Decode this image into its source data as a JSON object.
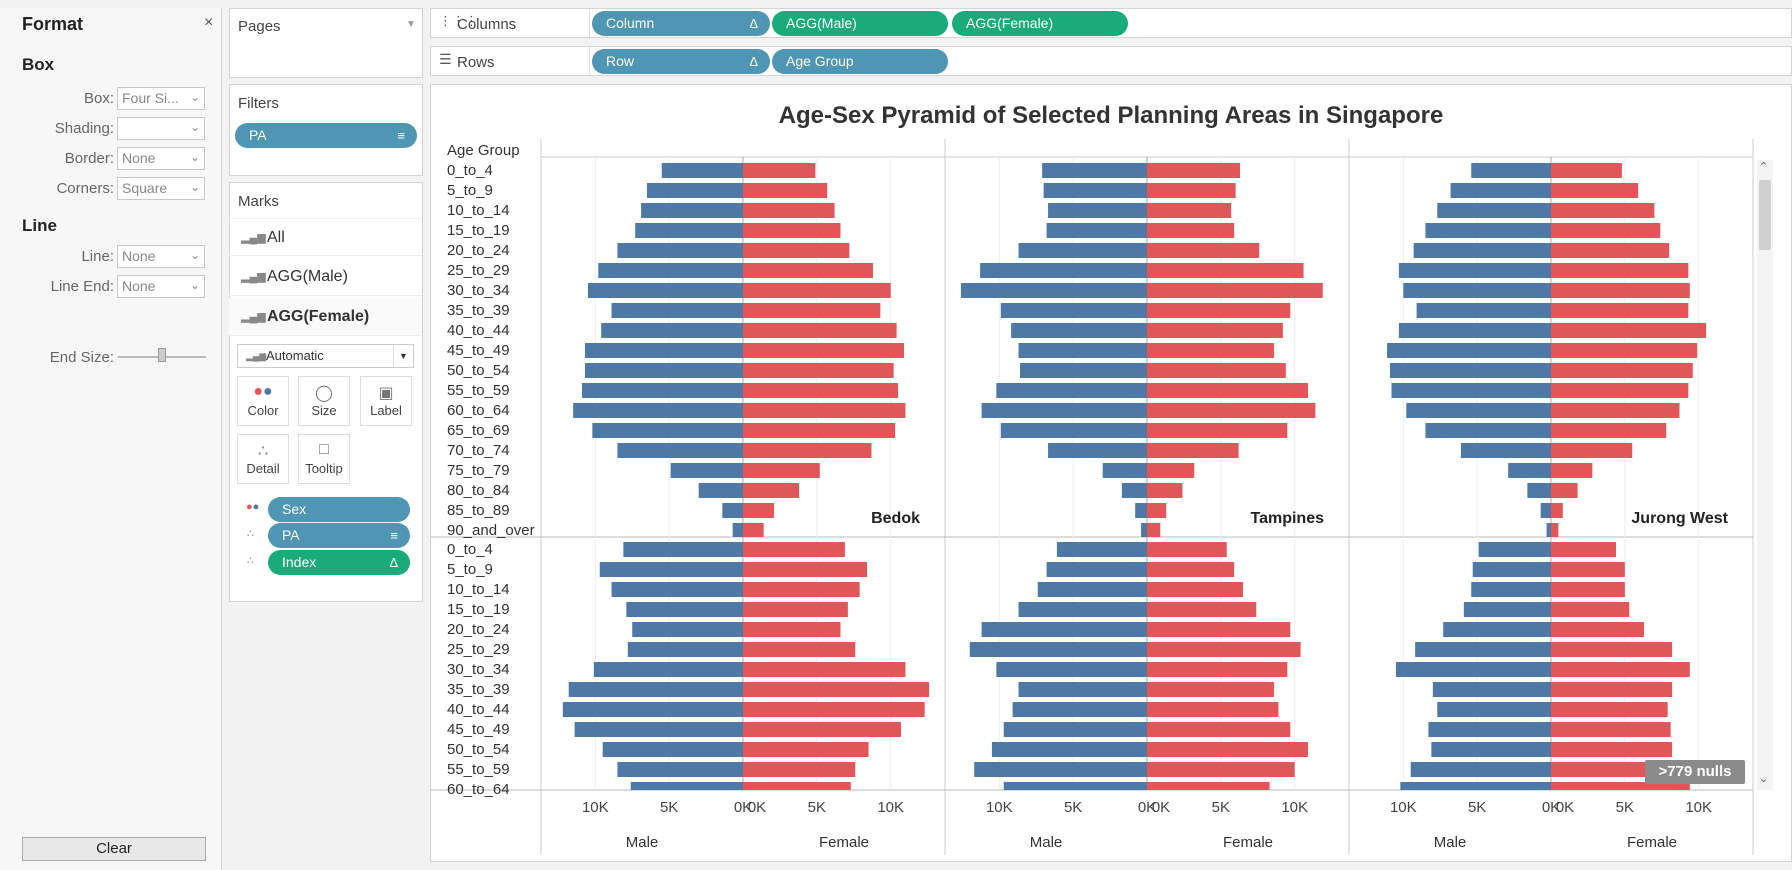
{
  "format_pane": {
    "title": "Format",
    "close": "×",
    "box_heading": "Box",
    "box_fields": [
      {
        "label": "Box:",
        "value": "Four Si..."
      },
      {
        "label": "Shading:",
        "value": ""
      },
      {
        "label": "Border:",
        "value": "None"
      },
      {
        "label": "Corners:",
        "value": "Square"
      }
    ],
    "line_heading": "Line",
    "line_fields": [
      {
        "label": "Line:",
        "value": "None"
      },
      {
        "label": "Line End:",
        "value": "None"
      }
    ],
    "end_size_label": "End Size:",
    "clear_label": "Clear"
  },
  "pages": {
    "title": "Pages"
  },
  "filters": {
    "title": "Filters",
    "pills": [
      {
        "label": "PA"
      }
    ]
  },
  "marks": {
    "title": "Marks",
    "rows": [
      {
        "label": "All"
      },
      {
        "label": "AGG(Male)"
      },
      {
        "label": "AGG(Female)"
      }
    ],
    "type": "Automatic",
    "buttons": [
      {
        "label": "Color"
      },
      {
        "label": "Size"
      },
      {
        "label": "Label"
      },
      {
        "label": "Detail"
      },
      {
        "label": "Tooltip"
      }
    ],
    "fields": [
      {
        "label": "Sex"
      },
      {
        "label": "PA"
      },
      {
        "label": "Index"
      }
    ]
  },
  "columns": {
    "label": "Columns",
    "pills": [
      "Column",
      "AGG(Male)",
      "AGG(Female)"
    ]
  },
  "rows": {
    "label": "Rows",
    "pills": [
      "Row",
      "Age Group"
    ]
  },
  "nulls_badge": ">779 nulls",
  "colors": {
    "male": "#4e79a7",
    "female": "#e15759",
    "pill_blue": "#4e96b3",
    "pill_green": "#1aab7a"
  },
  "chart_data": {
    "type": "bar",
    "title": "Age-Sex Pyramid of Selected Planning Areas in Singapore",
    "row_header": "Age Group",
    "x_axis_titles": [
      "Male",
      "Female"
    ],
    "x_ticks": [
      "10K",
      "5K",
      "0K"
    ],
    "x_ticks_female": [
      "0K",
      "5K",
      "10K"
    ],
    "xlim": [
      0,
      13000
    ],
    "age_groups_top": [
      "0_to_4",
      "5_to_9",
      "10_to_14",
      "15_to_19",
      "20_to_24",
      "25_to_29",
      "30_to_34",
      "35_to_39",
      "40_to_44",
      "45_to_49",
      "50_to_54",
      "55_to_59",
      "60_to_64",
      "65_to_69",
      "70_to_74",
      "75_to_79",
      "80_to_84",
      "85_to_89",
      "90_and_over"
    ],
    "age_groups_bottom": [
      "0_to_4",
      "5_to_9",
      "10_to_14",
      "15_to_19",
      "20_to_24",
      "25_to_29",
      "30_to_34",
      "35_to_39",
      "40_to_44",
      "45_to_49",
      "50_to_54",
      "55_to_59",
      "60_to_64"
    ],
    "panels_top": [
      {
        "name": "Bedok",
        "male": [
          5500,
          6500,
          6900,
          7300,
          8500,
          9800,
          10500,
          8900,
          9600,
          10700,
          10700,
          10900,
          11500,
          10200,
          8500,
          4900,
          3000,
          1400,
          700
        ],
        "female": [
          4900,
          5700,
          6200,
          6600,
          7200,
          8800,
          10000,
          9300,
          10400,
          10900,
          10200,
          10500,
          11000,
          10300,
          8700,
          5200,
          3800,
          2100,
          1400
        ]
      },
      {
        "name": "Tampines",
        "male": [
          7100,
          7000,
          6700,
          6800,
          8700,
          11300,
          12600,
          9900,
          9200,
          8700,
          8600,
          10200,
          11200,
          9900,
          6700,
          3000,
          1700,
          800,
          400
        ],
        "female": [
          6300,
          6000,
          5700,
          5900,
          7600,
          10600,
          11900,
          9700,
          9200,
          8600,
          9400,
          10900,
          11400,
          9500,
          6200,
          3200,
          2400,
          1300,
          900
        ]
      },
      {
        "name": "Jurong West",
        "male": [
          5400,
          6800,
          7700,
          8500,
          9300,
          10300,
          10000,
          9100,
          10300,
          11100,
          10900,
          10800,
          9800,
          8500,
          6100,
          2900,
          1600,
          700,
          300
        ],
        "female": [
          4800,
          5900,
          7000,
          7400,
          8000,
          9300,
          9400,
          9300,
          10500,
          9900,
          9600,
          9300,
          8700,
          7800,
          5500,
          2800,
          1800,
          800,
          500
        ]
      }
    ],
    "panels_bottom": [
      {
        "name": "",
        "male": [
          8100,
          9700,
          8900,
          7900,
          7500,
          7800,
          10100,
          11800,
          12200,
          11400,
          9500,
          8500,
          7600
        ],
        "female": [
          6900,
          8400,
          7900,
          7100,
          6600,
          7600,
          11000,
          12600,
          12300,
          10700,
          8500,
          7600,
          7300
        ]
      },
      {
        "name": "",
        "male": [
          6100,
          6800,
          7400,
          8700,
          11200,
          12000,
          10200,
          8700,
          9100,
          9700,
          10500,
          11700,
          9700
        ],
        "female": [
          5400,
          5900,
          6500,
          7400,
          9700,
          10400,
          9500,
          8600,
          8900,
          9700,
          10900,
          10000,
          8300
        ]
      },
      {
        "name": "",
        "male": [
          4900,
          5300,
          5400,
          5900,
          7300,
          9200,
          10500,
          8000,
          7700,
          8300,
          8100,
          9500,
          10200
        ],
        "female": [
          4400,
          5000,
          5000,
          5300,
          6300,
          8200,
          9400,
          8200,
          7900,
          8100,
          8200,
          8900,
          9400
        ]
      }
    ]
  }
}
